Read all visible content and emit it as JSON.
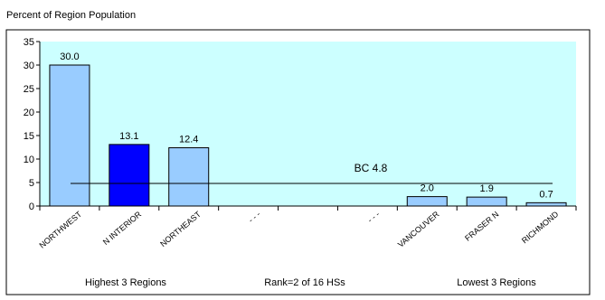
{
  "chart_data": {
    "type": "bar",
    "ylabel": "Percent of Region Population",
    "ylim": [
      0,
      35
    ],
    "yticks": [
      0,
      5,
      10,
      15,
      20,
      25,
      30,
      35
    ],
    "categories": [
      "NORTHWEST",
      "N INTERIOR",
      "NORTHEAST",
      "- - -",
      "",
      "- - -",
      "VANCOUVER",
      "FRASER N",
      "RICHMOND"
    ],
    "values": [
      30.0,
      13.1,
      12.4,
      null,
      null,
      null,
      2.0,
      1.9,
      0.7
    ],
    "value_labels": [
      "30.0",
      "13.1",
      "12.4",
      "",
      "",
      "",
      "2.0",
      "1.9",
      "0.7"
    ],
    "highlight_index": 1,
    "reference_line": {
      "label": "BC 4.8",
      "value": 4.8
    },
    "group_labels": [
      "Highest 3 Regions",
      "Rank=2 of 16 HSs",
      "Lowest 3 Regions"
    ],
    "colors": {
      "plot_bg": "#ccffff",
      "bar": "#99ccff",
      "highlight_bar": "#0000ff",
      "border": "#000000"
    }
  }
}
